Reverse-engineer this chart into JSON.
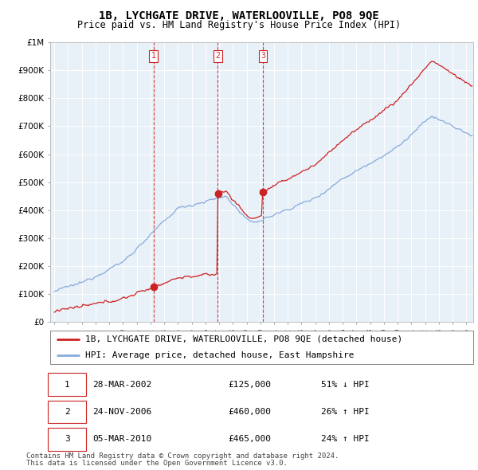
{
  "title": "1B, LYCHGATE DRIVE, WATERLOOVILLE, PO8 9QE",
  "subtitle": "Price paid vs. HM Land Registry's House Price Index (HPI)",
  "ylim": [
    0,
    1000000
  ],
  "yticks": [
    0,
    100000,
    200000,
    300000,
    400000,
    500000,
    600000,
    700000,
    800000,
    900000,
    1000000
  ],
  "ytick_labels": [
    "£0",
    "£100K",
    "£200K",
    "£300K",
    "£400K",
    "£500K",
    "£600K",
    "£700K",
    "£800K",
    "£900K",
    "£1M"
  ],
  "background_color": "#ffffff",
  "chart_bg_color": "#e8f0f8",
  "grid_color": "#ffffff",
  "hpi_color": "#88aadd",
  "price_color": "#cc2222",
  "vline_color": "#cc2222",
  "transactions": [
    {
      "label": "1",
      "date_num": 2002.22,
      "price": 125000,
      "text": "28-MAR-2002",
      "price_str": "£125,000",
      "hpi_str": "51% ↓ HPI"
    },
    {
      "label": "2",
      "date_num": 2006.9,
      "price": 460000,
      "text": "24-NOV-2006",
      "price_str": "£460,000",
      "hpi_str": "26% ↑ HPI"
    },
    {
      "label": "3",
      "date_num": 2010.18,
      "price": 465000,
      "text": "05-MAR-2010",
      "price_str": "£465,000",
      "hpi_str": "24% ↑ HPI"
    }
  ],
  "legend_line1": "1B, LYCHGATE DRIVE, WATERLOOVILLE, PO8 9QE (detached house)",
  "legend_line2": "HPI: Average price, detached house, East Hampshire",
  "footer1": "Contains HM Land Registry data © Crown copyright and database right 2024.",
  "footer2": "This data is licensed under the Open Government Licence v3.0.",
  "title_fontsize": 10,
  "subtitle_fontsize": 8.5,
  "tick_fontsize": 7.5,
  "legend_fontsize": 8,
  "table_fontsize": 8,
  "footer_fontsize": 6.5
}
